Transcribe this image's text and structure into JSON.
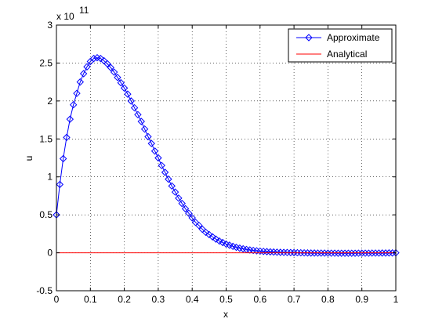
{
  "chart_data": {
    "type": "line",
    "xlabel": "x",
    "ylabel": "u",
    "exponent_base": "x 10",
    "exponent_power": "11",
    "xlim": [
      0,
      1
    ],
    "ylim": [
      -0.5,
      3
    ],
    "y_scale_factor": 100000000000.0,
    "xticks": [
      0,
      0.1,
      0.2,
      0.3,
      0.4,
      0.5,
      0.6,
      0.7,
      0.8,
      0.9,
      1
    ],
    "xtick_labels": [
      "0",
      "0.1",
      "0.2",
      "0.3",
      "0.4",
      "0.5",
      "0.6",
      "0.7",
      "0.8",
      "0.9",
      "1"
    ],
    "yticks": [
      -0.5,
      0,
      0.5,
      1,
      1.5,
      2,
      2.5,
      3
    ],
    "ytick_labels": [
      "-0.5",
      "0",
      "0.5",
      "1",
      "1.5",
      "2",
      "2.5",
      "3"
    ],
    "grid": true,
    "legend_position": "top-right",
    "series": [
      {
        "name": "Approximate",
        "color": "#0000ff",
        "marker": "diamond",
        "x": [
          0,
          0.01,
          0.02,
          0.03,
          0.04,
          0.05,
          0.06,
          0.07,
          0.08,
          0.09,
          0.1,
          0.11,
          0.12,
          0.13,
          0.14,
          0.15,
          0.16,
          0.17,
          0.18,
          0.19,
          0.2,
          0.21,
          0.22,
          0.23,
          0.24,
          0.25,
          0.26,
          0.27,
          0.28,
          0.29,
          0.3,
          0.31,
          0.32,
          0.33,
          0.34,
          0.35,
          0.36,
          0.37,
          0.38,
          0.39,
          0.4,
          0.41,
          0.42,
          0.43,
          0.44,
          0.45,
          0.46,
          0.47,
          0.48,
          0.49,
          0.5,
          0.51,
          0.52,
          0.53,
          0.54,
          0.55,
          0.56,
          0.57,
          0.58,
          0.59,
          0.6,
          0.61,
          0.62,
          0.63,
          0.64,
          0.65,
          0.66,
          0.67,
          0.68,
          0.69,
          0.7,
          0.71,
          0.72,
          0.73,
          0.74,
          0.75,
          0.76,
          0.77,
          0.78,
          0.79,
          0.8,
          0.81,
          0.82,
          0.83,
          0.84,
          0.85,
          0.86,
          0.87,
          0.88,
          0.89,
          0.9,
          0.91,
          0.92,
          0.93,
          0.94,
          0.95,
          0.96,
          0.97,
          0.98,
          0.99,
          1
        ],
        "y": [
          0.5,
          0.9,
          1.24,
          1.52,
          1.76,
          1.95,
          2.1,
          2.25,
          2.36,
          2.45,
          2.52,
          2.56,
          2.57,
          2.56,
          2.53,
          2.49,
          2.44,
          2.38,
          2.31,
          2.24,
          2.17,
          2.09,
          2.0,
          1.91,
          1.82,
          1.73,
          1.63,
          1.53,
          1.44,
          1.34,
          1.25,
          1.15,
          1.06,
          0.97,
          0.88,
          0.8,
          0.72,
          0.65,
          0.58,
          0.52,
          0.46,
          0.4,
          0.36,
          0.31,
          0.27,
          0.24,
          0.21,
          0.18,
          0.155,
          0.135,
          0.115,
          0.1,
          0.085,
          0.072,
          0.061,
          0.052,
          0.044,
          0.037,
          0.031,
          0.026,
          0.022,
          0.018,
          0.015,
          0.012,
          0.01,
          0.008,
          0.006,
          0.005,
          0.004,
          0.003,
          0.002,
          0.001,
          0.0,
          -0.001,
          -0.002,
          -0.003,
          -0.003,
          -0.004,
          -0.004,
          -0.004,
          -0.005,
          -0.005,
          -0.005,
          -0.006,
          -0.006,
          -0.006,
          -0.006,
          -0.006,
          -0.006,
          -0.005,
          -0.005,
          -0.005,
          -0.005,
          -0.004,
          -0.004,
          -0.004,
          -0.003,
          -0.003,
          -0.002,
          -0.002,
          0.0
        ]
      },
      {
        "name": "Analytical",
        "color": "#ff0000",
        "marker": "none",
        "x": [
          0,
          1
        ],
        "y": [
          0,
          0
        ]
      }
    ]
  }
}
